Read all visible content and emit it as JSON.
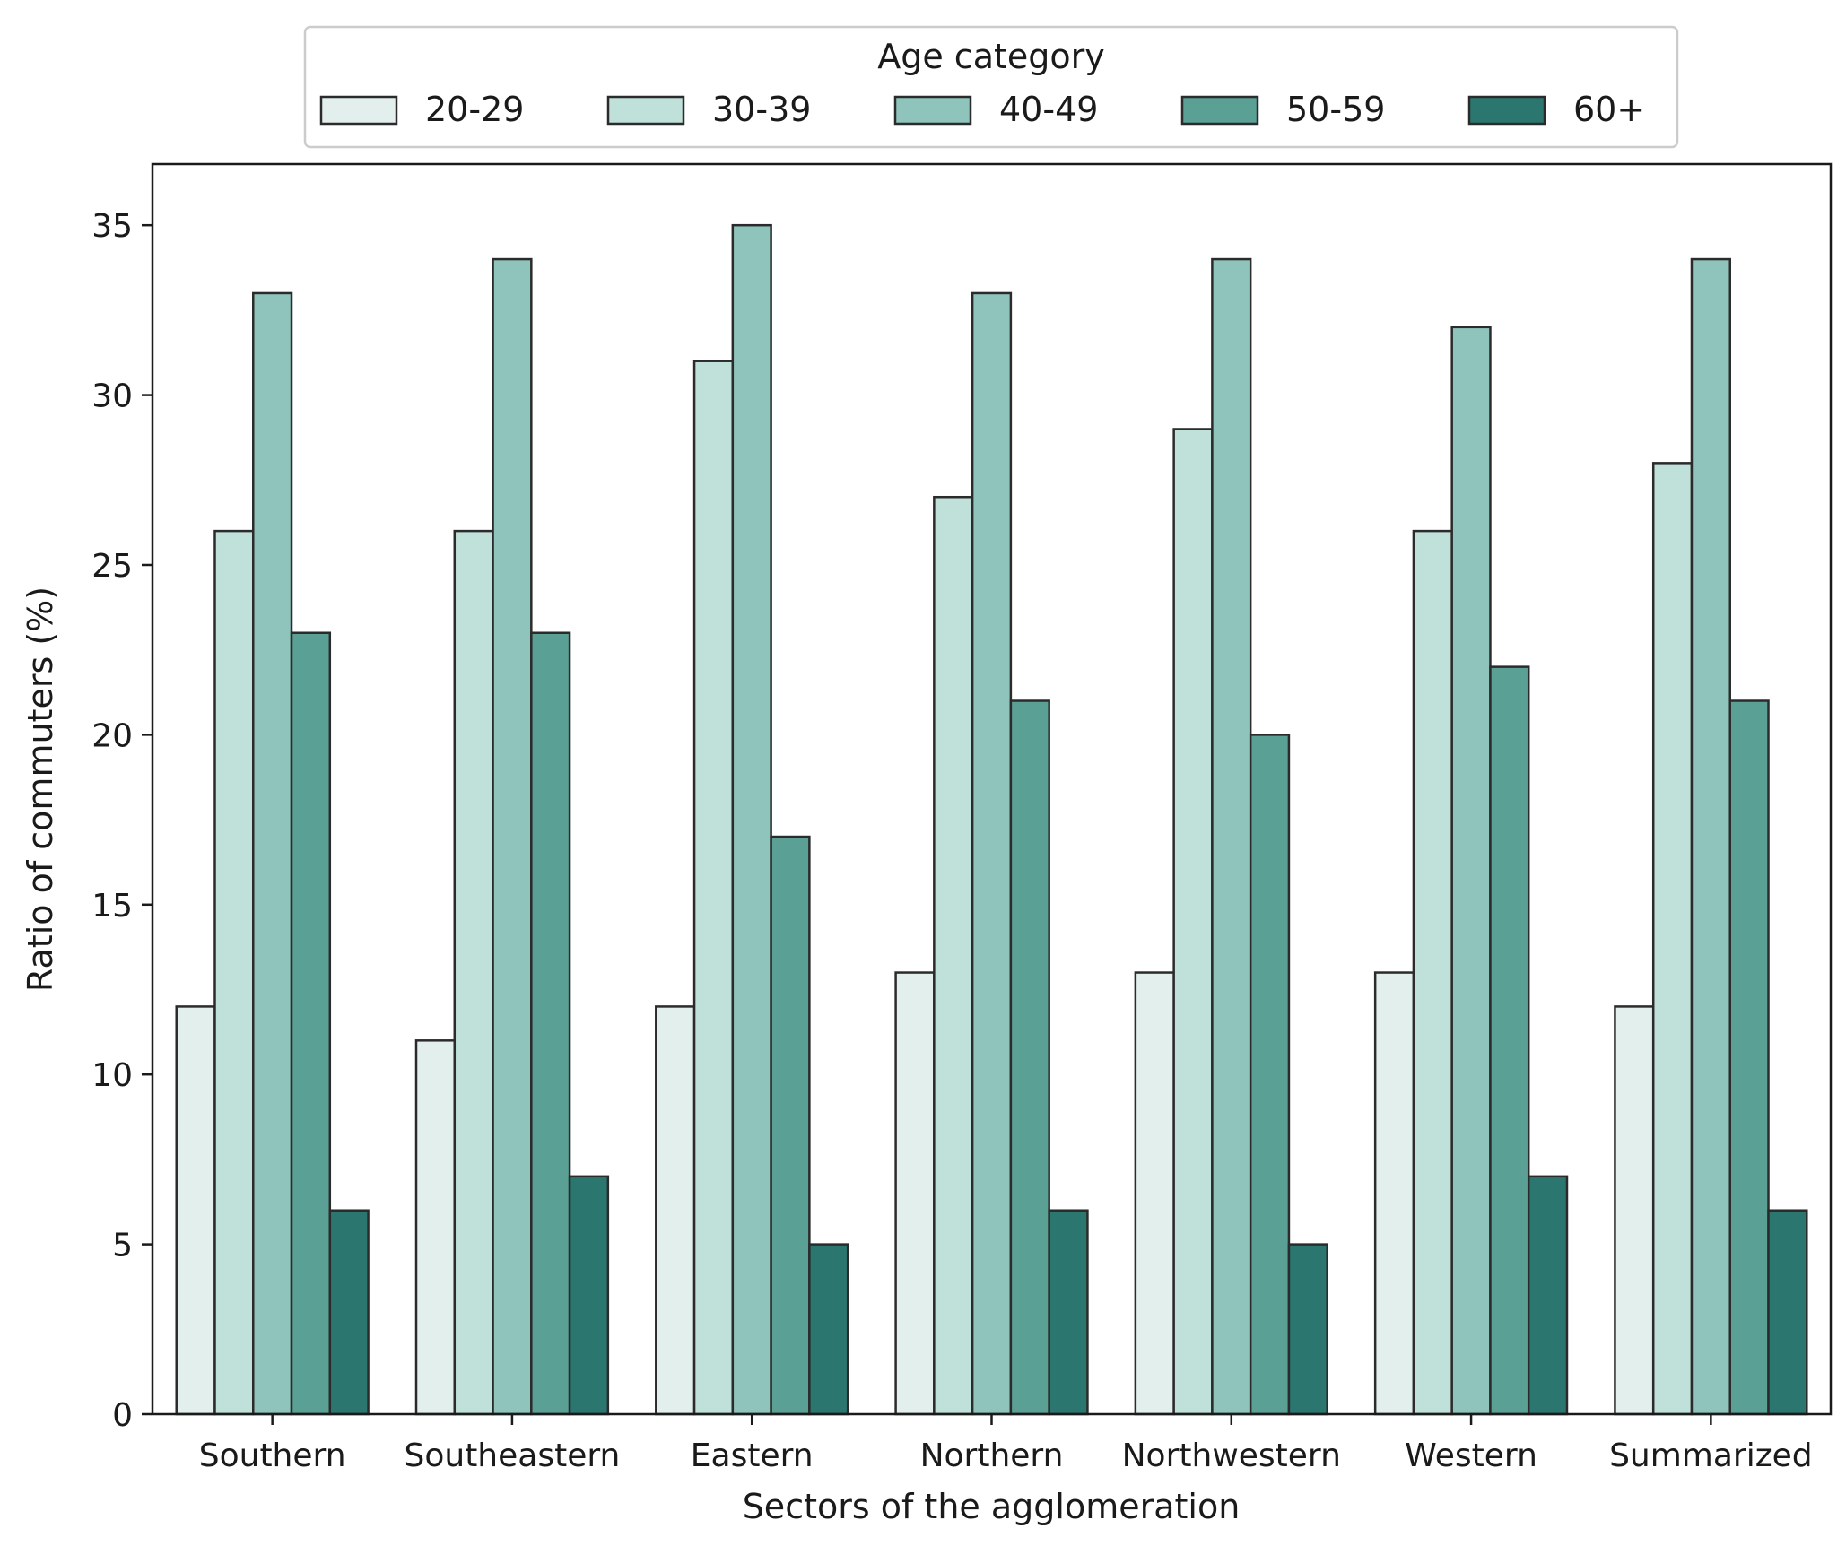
{
  "chart_data": {
    "type": "bar",
    "title": "",
    "xlabel": "Sectors of the agglomeration",
    "ylabel": "Ratio of commuters (%)",
    "ylim": [
      0,
      36.8
    ],
    "yticks": [
      0,
      5,
      10,
      15,
      20,
      25,
      30,
      35
    ],
    "grid": false,
    "legend": {
      "title": "Age category",
      "placement": "top-center",
      "columns": 5
    },
    "categories": [
      "Southern",
      "Southeastern",
      "Eastern",
      "Northern",
      "Northwestern",
      "Western",
      "Summarized"
    ],
    "series": [
      {
        "name": "20-29",
        "color": "#e3efed",
        "values": [
          12,
          11,
          12,
          13,
          13,
          13,
          12
        ]
      },
      {
        "name": "30-39",
        "color": "#c0e0da",
        "values": [
          26,
          26,
          31,
          27,
          29,
          26,
          28
        ]
      },
      {
        "name": "40-49",
        "color": "#8ec4bb",
        "values": [
          33,
          34,
          35,
          33,
          34,
          32,
          34
        ]
      },
      {
        "name": "50-59",
        "color": "#5aa094",
        "values": [
          23,
          23,
          17,
          21,
          20,
          22,
          21
        ]
      },
      {
        "name": "60+",
        "color": "#2b7770",
        "values": [
          6,
          7,
          5,
          6,
          5,
          7,
          6
        ]
      }
    ],
    "edge_color": "#2b2b2b"
  }
}
